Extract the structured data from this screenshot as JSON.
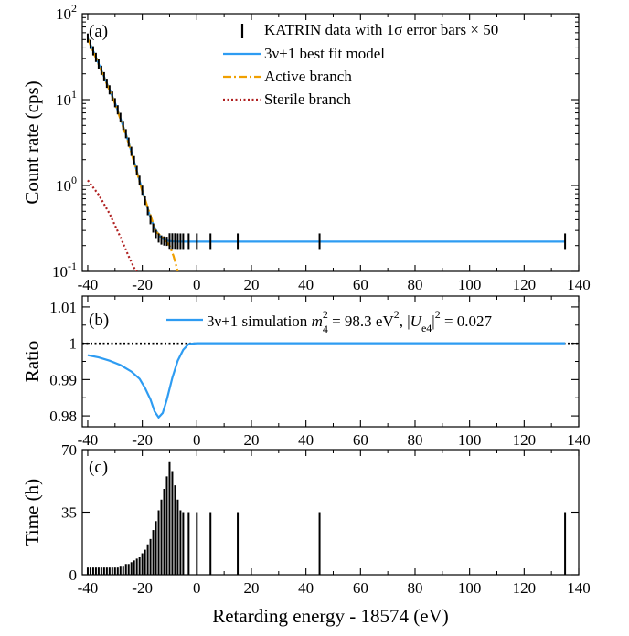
{
  "colors": {
    "model": "#2e9cf2",
    "active": "#f0a000",
    "sterile": "#b02020",
    "data": "#000000"
  },
  "xlabel": "Retarding energy - 18574 (eV)",
  "chart_data": [
    {
      "panel": "(a)",
      "type": "line",
      "ylabel": "Count rate (cps)",
      "yscale": "log",
      "xlim": [
        -42,
        140
      ],
      "ylim": [
        0.1,
        100
      ],
      "x_ticks": [
        "-40",
        "-20",
        "0",
        "20",
        "40",
        "60",
        "80",
        "100",
        "120",
        "140"
      ],
      "y_ticks": [
        {
          "value": 100,
          "base": "10",
          "exp": "2"
        },
        {
          "value": 10,
          "base": "10",
          "exp": "1"
        },
        {
          "value": 1,
          "base": "10",
          "exp": "0"
        },
        {
          "value": 0.1,
          "base": "10",
          "exp": "-1"
        }
      ],
      "legend": {
        "placement": "top-right",
        "entries": [
          {
            "key": "data",
            "label": "KATRIN data with 1σ error bars × 50"
          },
          {
            "key": "model",
            "label": "3ν+1 best fit model"
          },
          {
            "key": "active",
            "label": "Active branch"
          },
          {
            "key": "sterile",
            "label": "Sterile branch"
          }
        ]
      },
      "series": [
        {
          "key": "data",
          "style": "errorbar",
          "x": [
            -40,
            -39,
            -38,
            -37,
            -36,
            -35,
            -34,
            -33,
            -32,
            -31,
            -30,
            -29,
            -28,
            -27,
            -26,
            -25,
            -24,
            -23,
            -22,
            -21,
            -20,
            -19,
            -18,
            -17,
            -16,
            -15,
            -14,
            -13,
            -12,
            -11,
            -10,
            -9,
            -8,
            -7,
            -6,
            -5,
            -3,
            0,
            5,
            15,
            45,
            135
          ],
          "y": [
            52,
            44,
            37,
            31,
            26,
            22,
            18.5,
            15.5,
            13,
            11,
            9.2,
            7.6,
            6.2,
            5.0,
            4.0,
            3.2,
            2.5,
            1.95,
            1.5,
            1.15,
            0.88,
            0.67,
            0.51,
            0.4,
            0.32,
            0.27,
            0.245,
            0.232,
            0.226,
            0.224,
            0.223,
            0.223,
            0.223,
            0.222,
            0.222,
            0.222,
            0.222,
            0.222,
            0.222,
            0.222,
            0.222,
            0.222
          ]
        },
        {
          "key": "model",
          "style": "line",
          "x": [
            -40,
            -35,
            -30,
            -25,
            -20,
            -17,
            -15,
            -13,
            -11,
            -9,
            -7,
            -5,
            0,
            20,
            60,
            100,
            135
          ],
          "y": [
            52,
            22,
            9.2,
            3.2,
            0.88,
            0.42,
            0.3,
            0.245,
            0.228,
            0.224,
            0.223,
            0.222,
            0.222,
            0.222,
            0.222,
            0.222,
            0.222
          ]
        },
        {
          "key": "active",
          "style": "dashdot",
          "x": [
            -40,
            -35,
            -30,
            -25,
            -20,
            -15,
            -12,
            -10,
            -8.5,
            -7.5,
            -7
          ],
          "y": [
            51,
            21.5,
            9.0,
            3.1,
            0.86,
            0.29,
            0.24,
            0.2,
            0.15,
            0.115,
            0.1
          ]
        },
        {
          "key": "sterile",
          "style": "dotted",
          "x": [
            -40,
            -36,
            -32,
            -28,
            -25,
            -23,
            -22
          ],
          "y": [
            1.15,
            0.78,
            0.47,
            0.25,
            0.15,
            0.11,
            0.1
          ]
        }
      ]
    },
    {
      "panel": "(b)",
      "type": "line",
      "ylabel": "Ratio",
      "xlim": [
        -42,
        140
      ],
      "ylim": [
        0.977,
        1.013
      ],
      "x_ticks": [
        "-40",
        "-20",
        "0",
        "20",
        "40",
        "60",
        "80",
        "100",
        "120",
        "140"
      ],
      "y_ticks": [
        {
          "value": 1.01,
          "label": "1.01"
        },
        {
          "value": 1.0,
          "label": "1"
        },
        {
          "value": 0.99,
          "label": "0.99"
        },
        {
          "value": 0.98,
          "label": "0.98"
        }
      ],
      "reference_line": 1.0,
      "legend": {
        "placement": "top-right",
        "entries": [
          {
            "key": "model",
            "prefix": "3ν+1 simulation ",
            "m": "m",
            "m_sub": "4",
            "m_sup": "2",
            "m_val": " = 98.3 eV",
            "ev_sup": "2",
            "sep": ", |",
            "u": "U",
            "u_sub": "e4",
            "u_close": "|",
            "u_sup": "2",
            "u_val": " = 0.027"
          }
        ]
      },
      "series": [
        {
          "key": "model",
          "x": [
            -40,
            -36,
            -32,
            -28,
            -24,
            -21,
            -19,
            -17,
            -15.5,
            -14,
            -12.5,
            -11,
            -9,
            -7,
            -5,
            -3,
            0,
            40,
            80,
            135
          ],
          "y": [
            0.9967,
            0.9961,
            0.9952,
            0.994,
            0.9922,
            0.9902,
            0.9877,
            0.9845,
            0.9812,
            0.9796,
            0.9808,
            0.9845,
            0.9905,
            0.9952,
            0.9982,
            0.9998,
            1.0,
            1.0,
            1.0,
            1.0
          ]
        }
      ]
    },
    {
      "panel": "(c)",
      "type": "bar",
      "ylabel": "Time (h)",
      "xlim": [
        -42,
        140
      ],
      "ylim": [
        0,
        70
      ],
      "x_ticks": [
        "-40",
        "-20",
        "0",
        "20",
        "40",
        "60",
        "80",
        "100",
        "120",
        "140"
      ],
      "y_ticks": [
        {
          "value": 70,
          "label": "70"
        },
        {
          "value": 35,
          "label": "35"
        },
        {
          "value": 0,
          "label": "0"
        }
      ],
      "x": [
        -40,
        -39,
        -38,
        -37,
        -36,
        -35,
        -34,
        -33,
        -32,
        -31,
        -30,
        -29,
        -28,
        -27,
        -26,
        -25,
        -24,
        -23,
        -22,
        -21,
        -20,
        -19,
        -18,
        -17,
        -16,
        -15,
        -14,
        -13,
        -12,
        -11,
        -10,
        -9,
        -8,
        -7,
        -6,
        -5,
        -3,
        0,
        5,
        15,
        45,
        135
      ],
      "values": [
        4,
        4,
        4,
        4,
        4,
        4,
        4,
        4,
        4,
        4,
        4,
        4,
        5,
        5,
        6,
        6,
        7,
        8,
        9,
        10,
        12,
        14,
        17,
        20,
        25,
        30,
        36,
        42,
        48,
        55,
        63,
        58,
        50,
        42,
        36,
        35,
        35,
        35,
        35,
        35,
        35,
        35
      ]
    }
  ]
}
